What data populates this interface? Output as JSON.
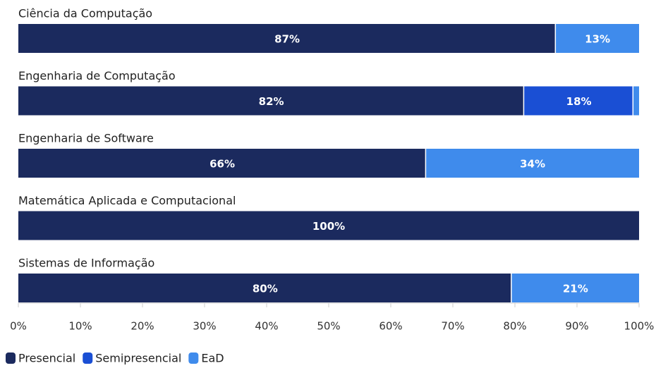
{
  "chart_data": {
    "type": "stacked-bar-horizontal",
    "categories": [
      "Ciência da Computação",
      "Engenharia de Computação",
      "Engenharia de Software",
      "Matemática Aplicada e Computacional",
      "Sistemas de Informação"
    ],
    "series": [
      {
        "name": "Presencial",
        "color": "#1b2a5e",
        "values": [
          86.6,
          81.5,
          65.7,
          100,
          79.5
        ],
        "value_labels": [
          "87%",
          "82%",
          "66%",
          "100%",
          "80%"
        ]
      },
      {
        "name": "Semipresencial",
        "color": "#1a4fd4",
        "values": [
          0,
          17.6,
          0,
          0,
          0
        ],
        "value_labels": [
          null,
          "18%",
          null,
          null,
          null
        ]
      },
      {
        "name": "EaD",
        "color": "#3f8bec",
        "values": [
          13.4,
          0.9,
          34.3,
          0,
          20.5
        ],
        "value_labels": [
          "13%",
          null,
          "34%",
          null,
          "21%"
        ]
      }
    ],
    "xlim": [
      0,
      100
    ],
    "xticks": [
      {
        "value": 0,
        "label": "0%"
      },
      {
        "value": 10,
        "label": "10%"
      },
      {
        "value": 20,
        "label": "20%"
      },
      {
        "value": 30,
        "label": "30%"
      },
      {
        "value": 40,
        "label": "40%"
      },
      {
        "value": 50,
        "label": "50%"
      },
      {
        "value": 60,
        "label": "60%"
      },
      {
        "value": 70,
        "label": "70%"
      },
      {
        "value": 80,
        "label": "80%"
      },
      {
        "value": 90,
        "label": "90%"
      },
      {
        "value": 100,
        "label": "100%"
      }
    ]
  }
}
